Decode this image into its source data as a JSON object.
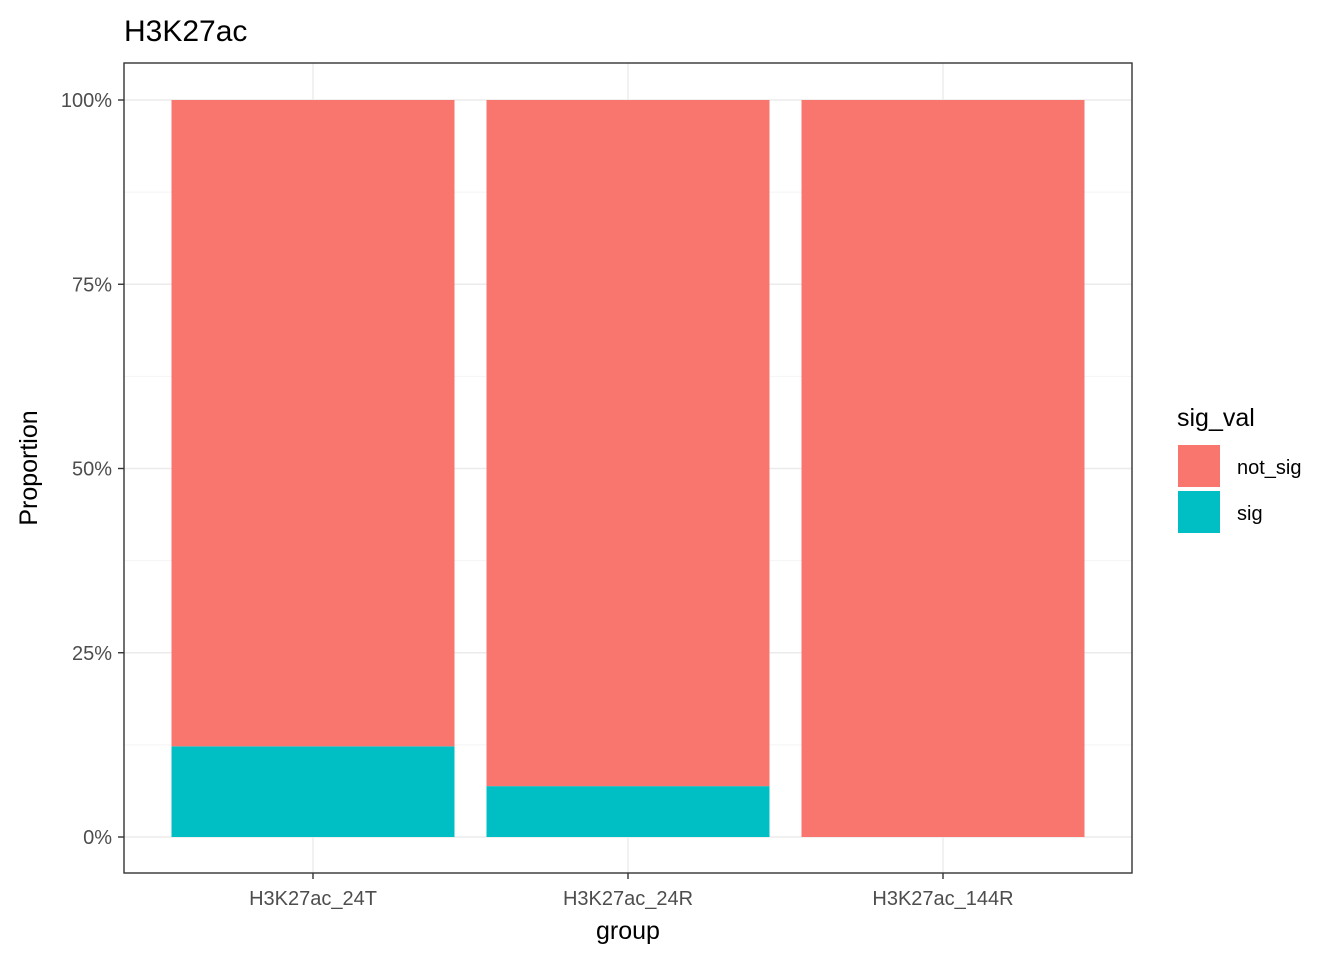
{
  "chart_data": {
    "type": "bar",
    "stacked": true,
    "title": "H3K27ac",
    "xlabel": "group",
    "ylabel": "Proportion",
    "categories": [
      "H3K27ac_24T",
      "H3K27ac_24R",
      "H3K27ac_144R"
    ],
    "series": [
      {
        "name": "sig",
        "values": [
          0.123,
          0.069,
          0.0
        ],
        "color": "#00BFC4"
      },
      {
        "name": "not_sig",
        "values": [
          0.877,
          0.931,
          1.0
        ],
        "color": "#F8766D"
      }
    ],
    "ylim": [
      0,
      1
    ],
    "y_ticks": [
      0,
      0.25,
      0.5,
      0.75,
      1
    ],
    "y_tick_labels": [
      "0%",
      "25%",
      "50%",
      "75%",
      "100%"
    ],
    "grid": true,
    "legend": {
      "title": "sig_val",
      "position": "right",
      "entries": [
        {
          "label": "not_sig",
          "color": "#F8766D"
        },
        {
          "label": "sig",
          "color": "#00BFC4"
        }
      ]
    }
  }
}
